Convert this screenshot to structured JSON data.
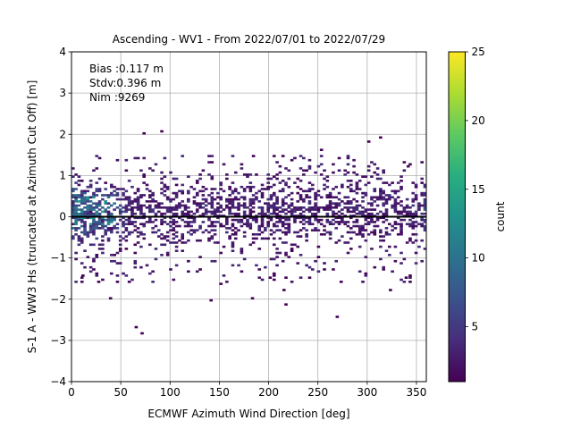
{
  "chart_data": {
    "type": "heatmap",
    "title": "Ascending - WV1 - From 2022/07/01 to 2022/07/29",
    "xlabel": "ECMWF Azimuth Wind Direction [deg]",
    "ylabel": "S-1 A - WW3 Hs (truncated at Azimuth Cut Off) [m]",
    "xlim": [
      0,
      360
    ],
    "ylim": [
      -4,
      4
    ],
    "x_ticks": [
      "0",
      "50",
      "100",
      "150",
      "200",
      "250",
      "300",
      "350"
    ],
    "y_ticks": [
      "−4",
      "−3",
      "−2",
      "−1",
      "0",
      "1",
      "2",
      "3",
      "4"
    ],
    "x_tick_values": [
      0,
      50,
      100,
      150,
      200,
      250,
      300,
      350
    ],
    "y_tick_values": [
      -4,
      -3,
      -2,
      -1,
      0,
      1,
      2,
      3,
      4
    ],
    "grid": true,
    "annotations": [
      "Bias :0.117 m",
      "Stdv:0.396 m",
      "Nim :9269"
    ],
    "reference_line_y": 0,
    "colorbar": {
      "label": "count",
      "range": [
        1,
        25
      ],
      "ticks": [
        "5",
        "10",
        "15",
        "20",
        "25"
      ],
      "tick_values": [
        5,
        10,
        15,
        20,
        25
      ],
      "colormap": "viridis"
    },
    "bin_width_x": 3,
    "bin_width_y": 0.05,
    "outliers": [
      [
        72,
        2.0
      ],
      [
        90,
        2.05
      ],
      [
        252,
        1.6
      ],
      [
        300,
        1.8
      ],
      [
        312,
        1.9
      ],
      [
        340,
        1.2
      ],
      [
        38,
        -2.0
      ],
      [
        64,
        -2.7
      ],
      [
        70,
        -2.85
      ],
      [
        140,
        -2.05
      ],
      [
        182,
        -2.0
      ],
      [
        216,
        -2.15
      ],
      [
        268,
        -2.45
      ],
      [
        322,
        -1.8
      ],
      [
        214,
        -1.8
      ],
      [
        338,
        -1.5
      ],
      [
        10,
        -1.45
      ],
      [
        26,
        -1.6
      ],
      [
        150,
        -1.65
      ],
      [
        200,
        -1.5
      ],
      [
        272,
        -1.6
      ]
    ]
  }
}
